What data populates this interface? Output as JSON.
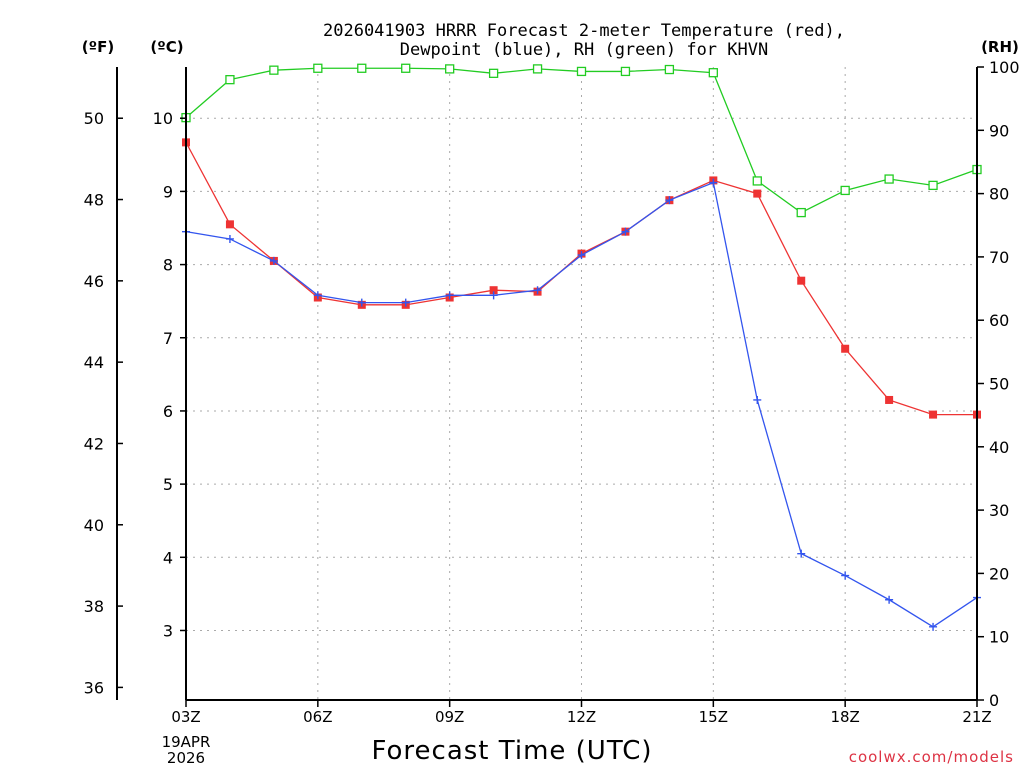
{
  "chart_data": {
    "type": "line",
    "title_line1": "2026041903 HRRR Forecast 2-meter Temperature (red),",
    "title_line2": "Dewpoint (blue), RH (green) for KHVN",
    "xlabel": "Forecast Time (UTC)",
    "x_date_line1": "19APR",
    "x_date_line2": "2026",
    "credit": "coolwx.com/models",
    "unit_labels": {
      "fahrenheit": "(ºF)",
      "celsius": "(ºC)",
      "rh": "(RH)"
    },
    "x_hours": [
      3,
      4,
      5,
      6,
      7,
      8,
      9,
      10,
      11,
      12,
      13,
      14,
      15,
      16,
      17,
      18,
      19,
      20,
      21
    ],
    "x_tick_hours": [
      3,
      6,
      9,
      12,
      15,
      18,
      21
    ],
    "x_tick_labels": [
      "03Z",
      "06Z",
      "09Z",
      "12Z",
      "15Z",
      "18Z",
      "21Z"
    ],
    "celsius_axis": {
      "min": 2.05,
      "max": 10.7,
      "ticks": [
        3,
        4,
        5,
        6,
        7,
        8,
        9,
        10
      ]
    },
    "fahrenheit_ticks": [
      36,
      38,
      40,
      42,
      44,
      46,
      48,
      50
    ],
    "rh_axis": {
      "min": 0,
      "max": 100,
      "ticks": [
        0,
        10,
        20,
        30,
        40,
        50,
        60,
        70,
        80,
        90,
        100
      ]
    },
    "series": [
      {
        "name": "Temperature",
        "unit": "C",
        "color": "#ee3333",
        "marker": "filled-square",
        "values": [
          9.67,
          8.55,
          8.05,
          7.55,
          7.45,
          7.45,
          7.55,
          7.65,
          7.63,
          8.15,
          8.45,
          8.88,
          9.15,
          8.97,
          7.78,
          6.85,
          6.15,
          5.95,
          5.95
        ]
      },
      {
        "name": "Dewpoint",
        "unit": "C",
        "color": "#3355ee",
        "marker": "plus",
        "values": [
          8.45,
          8.35,
          8.05,
          7.58,
          7.48,
          7.48,
          7.58,
          7.58,
          7.65,
          8.13,
          8.45,
          8.88,
          9.12,
          6.15,
          4.05,
          3.75,
          3.42,
          3.05,
          3.45
        ]
      },
      {
        "name": "RH",
        "unit": "%",
        "color": "#22cc22",
        "marker": "open-square",
        "values": [
          92,
          98,
          99.5,
          99.8,
          99.8,
          99.8,
          99.7,
          99.0,
          99.7,
          99.3,
          99.3,
          99.6,
          99.1,
          82,
          77,
          80.5,
          82.3,
          81.3,
          83.8
        ]
      }
    ]
  }
}
